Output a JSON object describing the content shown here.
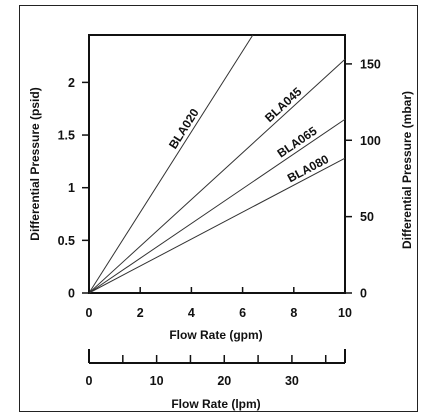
{
  "chart_data": {
    "type": "line",
    "xlabel": "Flow Rate (gpm)",
    "xlabel_secondary": "Flow Rate (lpm)",
    "ylabel": "Differential Pressure (psid)",
    "ylabel_secondary": "Differential Pressure (mbar)",
    "xlim": [
      0,
      10
    ],
    "ylim": [
      0,
      2.45
    ],
    "xlim_secondary": [
      0,
      37.85
    ],
    "x_ticks": [
      "0",
      "2",
      "4",
      "6",
      "8",
      "10"
    ],
    "y_ticks": [
      "0",
      "0.5",
      "1",
      "1.5",
      "2"
    ],
    "y_secondary_ticks": [
      "0",
      "50",
      "100",
      "150"
    ],
    "x_secondary_ticks": [
      "0",
      "10",
      "20",
      "30"
    ],
    "grid": false,
    "series": [
      {
        "name": "BLA020",
        "x": [
          0,
          6.4
        ],
        "y": [
          0,
          2.45
        ]
      },
      {
        "name": "BLA045",
        "x": [
          0,
          10
        ],
        "y": [
          0,
          2.22
        ]
      },
      {
        "name": "BLA065",
        "x": [
          0,
          10
        ],
        "y": [
          0,
          1.65
        ]
      },
      {
        "name": "BLA080",
        "x": [
          0,
          10
        ],
        "y": [
          0,
          1.28
        ]
      }
    ]
  }
}
